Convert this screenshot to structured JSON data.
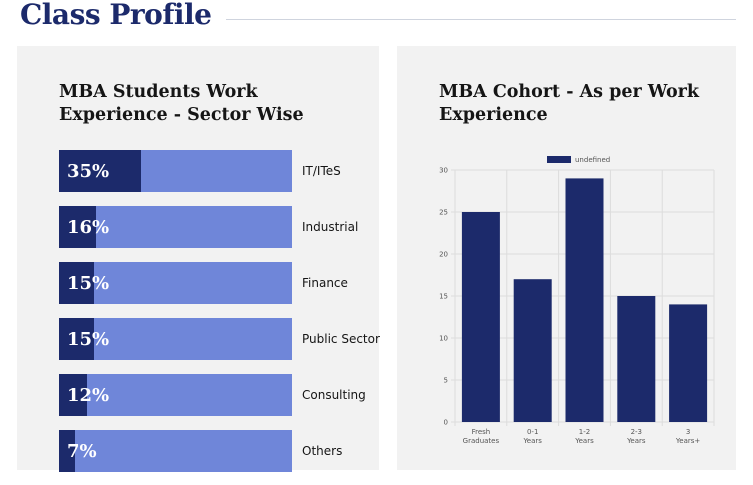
{
  "page": {
    "title": "Class Profile"
  },
  "left_panel": {
    "title": "MBA Students Work Experience - Sector Wise"
  },
  "right_panel": {
    "title": "MBA Cohort - As per Work Experience"
  },
  "colors": {
    "brand_navy": "#1c2a6b",
    "bar_light": "#6f86d9",
    "panel_bg": "#f2f2f2"
  },
  "chart_data": [
    {
      "type": "bar",
      "orientation": "horizontal",
      "title": "MBA Students Work Experience - Sector Wise",
      "categories": [
        "IT/ITeS",
        "Industrial",
        "Finance",
        "Public Sector",
        "Consulting",
        "Others"
      ],
      "values": [
        35,
        16,
        15,
        15,
        12,
        7
      ],
      "labels": [
        "35%",
        "16%",
        "15%",
        "15%",
        "12%",
        "7%"
      ],
      "unit": "%"
    },
    {
      "type": "bar",
      "title": "MBA Cohort - As per Work Experience",
      "legend": "undefined",
      "legend_position": "top-center",
      "categories": [
        "Fresh Graduates",
        "0-1 Years",
        "1-2 Years",
        "2-3 Years",
        "3 Years+"
      ],
      "category_lines": [
        [
          "Fresh",
          "Graduates"
        ],
        [
          "0-1",
          "Years"
        ],
        [
          "1-2",
          "Years"
        ],
        [
          "2-3",
          "Years"
        ],
        [
          "3",
          "Years+"
        ]
      ],
      "values": [
        25,
        17,
        29,
        15,
        14
      ],
      "ylim": [
        0,
        30
      ],
      "yticks": [
        0,
        5,
        10,
        15,
        20,
        25,
        30
      ],
      "grid": true
    }
  ]
}
